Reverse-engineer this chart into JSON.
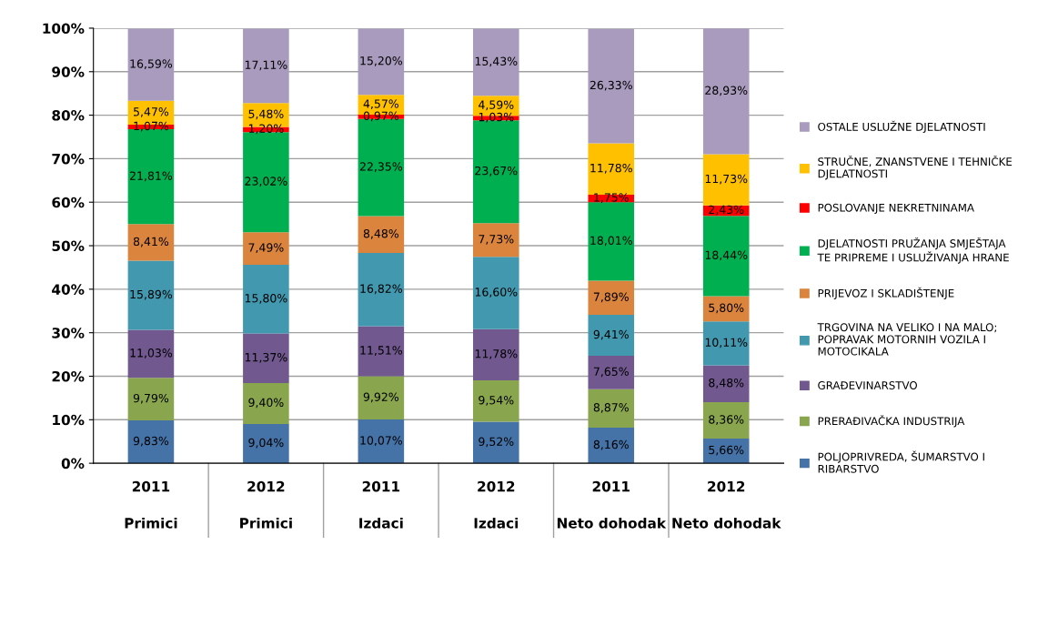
{
  "chart_data": {
    "type": "bar",
    "stacked": true,
    "categories": [
      "2011\nPrimici",
      "2012\nPrimici",
      "2011\nIzdaci",
      "2012\nIzdaci",
      "2011\nNeto dohodak",
      "2012\nNeto dohodak"
    ],
    "series": [
      {
        "name": "POLJOPRIVREDA, ŠUMARSTVO I\nRIBARSTVO",
        "color": "#4572a7",
        "values": [
          9.83,
          9.04,
          10.07,
          9.52,
          8.16,
          5.66
        ],
        "value_labels": [
          "9,83%",
          "9,04%",
          "10,07%",
          "9,52%",
          "8,16%",
          "5,66%"
        ]
      },
      {
        "name": "PRERAĐIVAČKA INDUSTRIJA",
        "color": "#89a54e",
        "values": [
          9.79,
          9.4,
          9.92,
          9.54,
          8.87,
          8.36
        ],
        "value_labels": [
          "9,79%",
          "9,40%",
          "9,92%",
          "9,54%",
          "8,87%",
          "8,36%"
        ]
      },
      {
        "name": "GRAĐEVINARSTVO",
        "color": "#71588f",
        "values": [
          11.03,
          11.37,
          11.51,
          11.78,
          7.65,
          8.48
        ],
        "value_labels": [
          "11,03%",
          "11,37%",
          "11,51%",
          "11,78%",
          "7,65%",
          "8,48%"
        ]
      },
      {
        "name": "TRGOVINA NA VELIKO I NA MALO;\nPOPRAVAK MOTORNIH VOZILA I\nMOTOCIKALA",
        "color": "#4198af",
        "values": [
          15.89,
          15.8,
          16.82,
          16.6,
          9.41,
          10.11
        ],
        "value_labels": [
          "15,89%",
          "15,80%",
          "16,82%",
          "16,60%",
          "9,41%",
          "10,11%"
        ]
      },
      {
        "name": "PRIJEVOZ I SKLADIŠTENJE",
        "color": "#db843d",
        "values": [
          8.41,
          7.49,
          8.48,
          7.73,
          7.89,
          5.8
        ],
        "value_labels": [
          "8,41%",
          "7,49%",
          "8,48%",
          "7,73%",
          "7,89%",
          "5,80%"
        ]
      },
      {
        "name": "DJELATNOSTI PRUŽANJA SMJEŠTAJA\nTE PRIPREME I USLUŽIVANJA HRANE",
        "color": "#00b050",
        "values": [
          21.81,
          23.02,
          22.35,
          23.67,
          18.01,
          18.44
        ],
        "value_labels": [
          "21,81%",
          "23,02%",
          "22,35%",
          "23,67%",
          "18,01%",
          "18,44%"
        ]
      },
      {
        "name": "POSLOVANJE NEKRETNINAMA",
        "color": "#ff0000",
        "values": [
          1.07,
          1.2,
          0.97,
          1.03,
          1.75,
          2.43
        ],
        "value_labels": [
          "1,07%",
          "1,20%",
          "0,97%",
          "1,03%",
          "1,75%",
          "2,43%"
        ]
      },
      {
        "name": "STRUČNE, ZNANSTVENE I TEHNIČKE\nDJELATNOSTI",
        "color": "#ffc000",
        "values": [
          5.47,
          5.48,
          4.57,
          4.59,
          11.78,
          11.73
        ],
        "value_labels": [
          "5,47%",
          "5,48%",
          "4,57%",
          "4,59%",
          "11,78%",
          "11,73%"
        ]
      },
      {
        "name": "OSTALE USLUŽNE DJELATNOSTI",
        "color": "#a99bbd",
        "values": [
          16.59,
          17.11,
          15.2,
          15.43,
          26.33,
          28.93
        ],
        "value_labels": [
          "16,59%",
          "17,11%",
          "15,20%",
          "15,43%",
          "26,33%",
          "28,93%"
        ]
      }
    ],
    "ylim": [
      0,
      100
    ],
    "yticks": [
      {
        "value": 0,
        "label": "0%"
      },
      {
        "value": 10,
        "label": "10%"
      },
      {
        "value": 20,
        "label": "20%"
      },
      {
        "value": 30,
        "label": "30%"
      },
      {
        "value": 40,
        "label": "40%"
      },
      {
        "value": 50,
        "label": "50%"
      },
      {
        "value": 60,
        "label": "60%"
      },
      {
        "value": 70,
        "label": "70%"
      },
      {
        "value": 80,
        "label": "80%"
      },
      {
        "value": 90,
        "label": "90%"
      },
      {
        "value": 100,
        "label": "100%"
      }
    ],
    "grid": "y",
    "legend": "right"
  }
}
